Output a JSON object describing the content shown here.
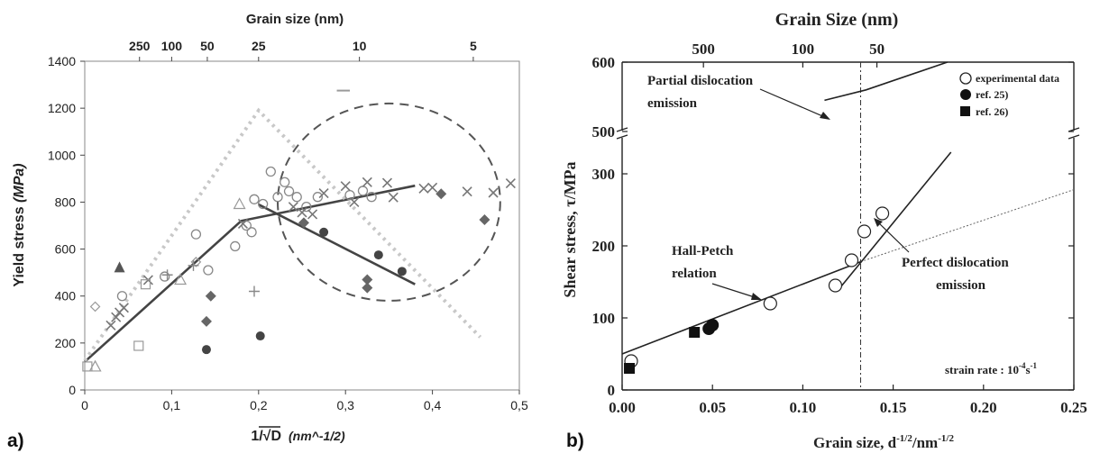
{
  "chart_data": [
    {
      "panel_label": "a)",
      "type": "scatter",
      "xlabel": "1/√D",
      "xlabel_unit": "(nm^-1/2)",
      "ylabel": "Yield stress",
      "ylabel_unit": "(MPa)",
      "xlim": [
        0,
        0.5
      ],
      "ylim": [
        0,
        1400
      ],
      "x_ticks": [
        "0",
        "0,1",
        "0,2",
        "0,3",
        "0,4",
        "0,5"
      ],
      "y_ticks": [
        "0",
        "200",
        "400",
        "600",
        "800",
        "1000",
        "1200",
        "1400"
      ],
      "top_axis": {
        "label": "Grain size (nm)",
        "ticks": [
          {
            "label": "250",
            "x": 0.063
          },
          {
            "label": "100",
            "x": 0.1
          },
          {
            "label": "50",
            "x": 0.141
          },
          {
            "label": "25",
            "x": 0.2
          },
          {
            "label": "10",
            "x": 0.316
          },
          {
            "label": "5",
            "x": 0.447
          }
        ]
      },
      "series": [
        {
          "marker": "circle",
          "values": [
            [
              0.043,
              400
            ],
            [
              0.092,
              483
            ],
            [
              0.128,
              663
            ],
            [
              0.142,
              510
            ],
            [
              0.173,
              612
            ],
            [
              0.186,
              700
            ],
            [
              0.192,
              672
            ],
            [
              0.195,
              812
            ],
            [
              0.205,
              792
            ],
            [
              0.214,
              930
            ],
            [
              0.222,
              822
            ],
            [
              0.23,
              885
            ],
            [
              0.235,
              846
            ],
            [
              0.244,
              822
            ],
            [
              0.255,
              780
            ],
            [
              0.268,
              822
            ],
            [
              0.305,
              830
            ],
            [
              0.32,
              848
            ],
            [
              0.33,
              822
            ]
          ]
        },
        {
          "marker": "cross",
          "values": [
            [
              0.03,
              275
            ],
            [
              0.036,
              310
            ],
            [
              0.04,
              330
            ],
            [
              0.045,
              350
            ],
            [
              0.073,
              468
            ],
            [
              0.182,
              708
            ],
            [
              0.24,
              780
            ],
            [
              0.25,
              756
            ],
            [
              0.262,
              748
            ],
            [
              0.275,
              838
            ],
            [
              0.3,
              868
            ],
            [
              0.31,
              800
            ],
            [
              0.325,
              885
            ],
            [
              0.348,
              882
            ],
            [
              0.355,
              820
            ],
            [
              0.39,
              858
            ],
            [
              0.4,
              862
            ],
            [
              0.44,
              845
            ],
            [
              0.47,
              840
            ],
            [
              0.49,
              880
            ]
          ]
        },
        {
          "marker": "dark-diamond",
          "values": [
            [
              0.14,
              292
            ],
            [
              0.145,
              400
            ],
            [
              0.252,
              712
            ],
            [
              0.325,
              470
            ],
            [
              0.325,
              435
            ],
            [
              0.41,
              835
            ],
            [
              0.46,
              725
            ]
          ]
        },
        {
          "marker": "dark-dot",
          "values": [
            [
              0.14,
              172
            ],
            [
              0.202,
              230
            ],
            [
              0.275,
              672
            ],
            [
              0.338,
              575
            ],
            [
              0.365,
              505
            ]
          ]
        },
        {
          "marker": "triangle",
          "values": [
            [
              0.012,
              100
            ],
            [
              0.11,
              470
            ],
            [
              0.178,
              792
            ]
          ]
        },
        {
          "marker": "filled-triangle",
          "values": [
            [
              0.04,
              520
            ]
          ]
        },
        {
          "marker": "square",
          "values": [
            [
              0.003,
              100
            ],
            [
              0.062,
              188
            ],
            [
              0.07,
              450
            ]
          ]
        },
        {
          "marker": "diamond",
          "values": [
            [
              0.012,
              355
            ],
            [
              0.128,
              545
            ]
          ]
        },
        {
          "marker": "plus",
          "values": [
            [
              0.095,
              490
            ],
            [
              0.125,
              530
            ],
            [
              0.195,
              420
            ]
          ]
        }
      ],
      "fit_lines": [
        {
          "style": "solid-dark",
          "points": [
            [
              0.0,
              120
            ],
            [
              0.18,
              720
            ],
            [
              0.38,
              870
            ]
          ]
        },
        {
          "style": "solid-dark",
          "points": [
            [
              0.2,
              790
            ],
            [
              0.38,
              450
            ]
          ]
        },
        {
          "style": "dotted-light",
          "points": [
            [
              0.0,
              125
            ],
            [
              0.2,
              1190
            ],
            [
              0.455,
              225
            ]
          ]
        }
      ],
      "annotations": {
        "dashed_ellipse": {
          "center": [
            0.35,
            800
          ],
          "half_width": 0.128,
          "half_height": 420
        }
      }
    },
    {
      "panel_label": "b)",
      "type": "scatter",
      "title": "Grain Size (nm)",
      "xlabel": "Grain size, d",
      "xlabel_exponent": "-1/2",
      "xlabel_unit": "/nm",
      "xlabel_unit_exponent": "-1/2",
      "ylabel": "Shear stress, τ/MPa",
      "xlim": [
        0,
        0.25
      ],
      "ylim": [
        0,
        600
      ],
      "axis_break": [
        350,
        500
      ],
      "x_ticks": [
        "0.00",
        "0.05",
        "0.10",
        "0.15",
        "0.20",
        "0.25"
      ],
      "y_ticks": [
        "0",
        "100",
        "200",
        "300",
        "500",
        "600"
      ],
      "top_axis": {
        "ticks": [
          {
            "label": "500",
            "x": 0.045
          },
          {
            "label": "100",
            "x": 0.1
          },
          {
            "label": "50",
            "x": 0.141
          }
        ]
      },
      "series": [
        {
          "name": "experimental data",
          "marker": "open-circle",
          "values": [
            [
              0.005,
              40
            ],
            [
              0.082,
              120
            ],
            [
              0.118,
              145
            ],
            [
              0.127,
              180
            ],
            [
              0.134,
              220
            ],
            [
              0.144,
              245
            ]
          ]
        },
        {
          "name": "ref. 25)",
          "marker": "filled-circle",
          "values": [
            [
              0.048,
              85
            ],
            [
              0.05,
              90
            ]
          ]
        },
        {
          "name": "ref. 26)",
          "marker": "filled-square",
          "values": [
            [
              0.004,
              30
            ],
            [
              0.04,
              80
            ]
          ]
        }
      ],
      "lines": [
        {
          "name": "Hall-Petch",
          "style": "solid",
          "points": [
            [
              0.0,
              50
            ],
            [
              0.132,
              178
            ]
          ]
        },
        {
          "style": "dotted",
          "points": [
            [
              0.132,
              178
            ],
            [
              0.25,
              278
            ]
          ]
        },
        {
          "style": "solid",
          "points": [
            [
              0.12,
              140
            ],
            [
              0.182,
              330
            ]
          ]
        },
        {
          "style": "solid-break-region",
          "points": [
            [
              0.112,
              545
            ],
            [
              0.135,
              560
            ],
            [
              0.18,
              600
            ]
          ]
        }
      ],
      "vertical_line": {
        "x": 0.132,
        "style": "dash-dot"
      },
      "annotations": [
        {
          "text": "Partial dislocation",
          "text2": "emission"
        },
        {
          "text": "Hall-Petch",
          "text2": "relation"
        },
        {
          "text": "Perfect dislocation",
          "text2": "emission"
        },
        {
          "text": "strain rate : 10",
          "sup": "-4",
          "tail": "s",
          "tail_sup": "-1"
        }
      ],
      "legend_position": "top-right"
    }
  ]
}
